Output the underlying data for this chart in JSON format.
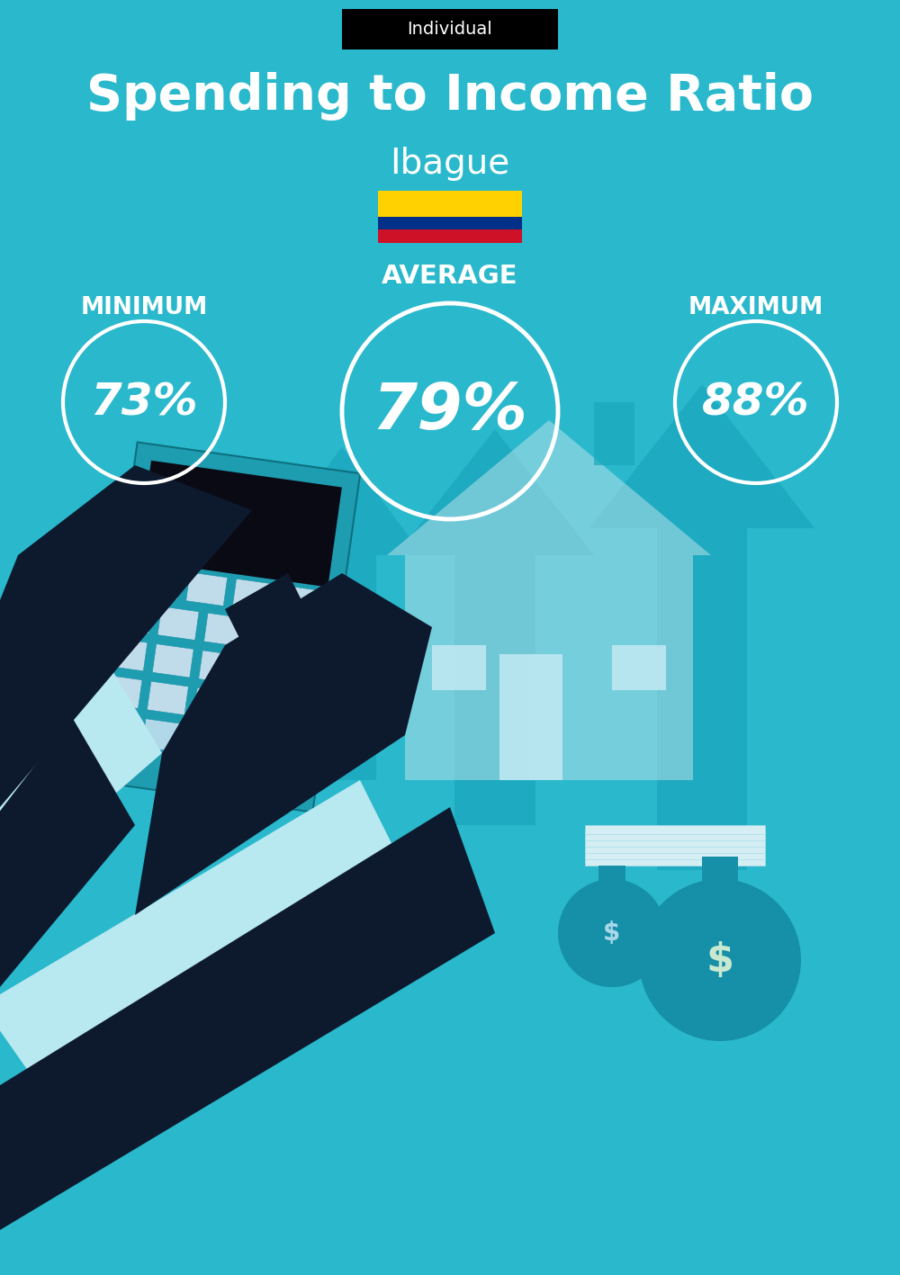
{
  "title": "Spending to Income Ratio",
  "subtitle": "Ibague",
  "badge_text": "Individual",
  "badge_bg": "#000000",
  "badge_text_color": "#ffffff",
  "bg_color": "#29b8cc",
  "text_color": "#ffffff",
  "min_label": "MINIMUM",
  "avg_label": "AVERAGE",
  "max_label": "MAXIMUM",
  "min_value": "73%",
  "avg_value": "79%",
  "max_value": "88%",
  "circle_color": "#ffffff",
  "flag_colors": [
    "#FFD100",
    "#003087",
    "#CE1126"
  ],
  "arrow_color": "#1da8be",
  "calc_color": "#1e9cb0",
  "hand_color": "#0d1a2e",
  "sleeve_color": "#b8e8f0",
  "house_color": "#1aa8bc",
  "house_light": "#a8dde8",
  "bag_color": "#1590a8",
  "fig_width": 10.0,
  "fig_height": 14.17,
  "dpi": 100
}
